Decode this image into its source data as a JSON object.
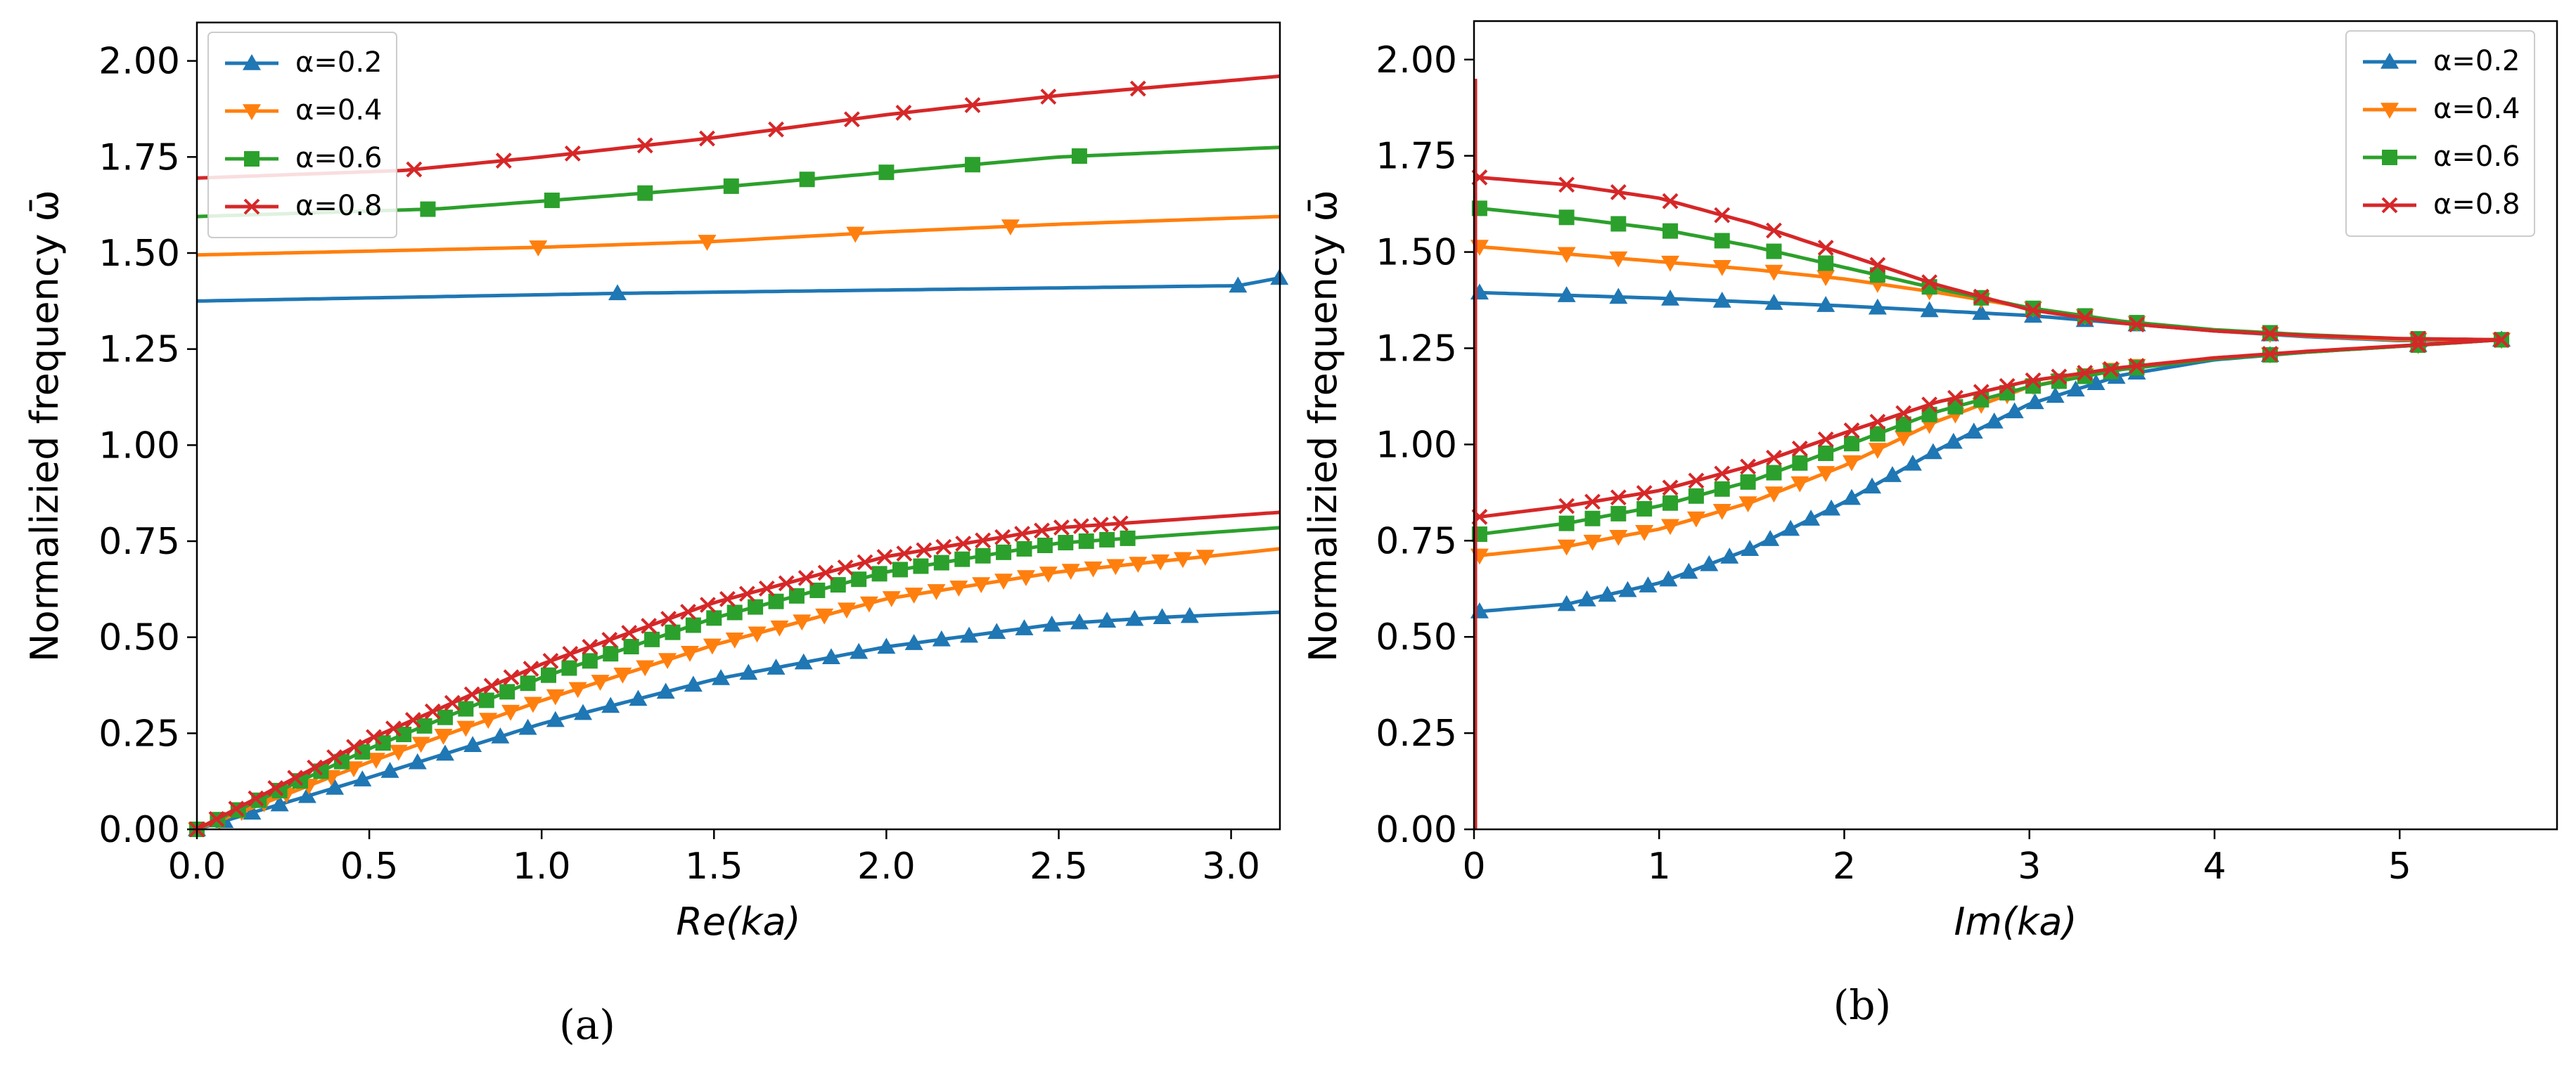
{
  "chart_data": [
    {
      "type": "line",
      "panel": "(a)",
      "xlabel": "Re(ka)",
      "ylabel": "Normalizied frequency ω̄",
      "xlim": [
        0,
        3.1416
      ],
      "ylim": [
        0,
        2.1
      ],
      "xticks": [
        "0.0",
        "0.5",
        "1.0",
        "1.5",
        "2.0",
        "2.5",
        "3.0"
      ],
      "yticks": [
        "0.00",
        "0.25",
        "0.50",
        "0.75",
        "1.00",
        "1.25",
        "1.50",
        "1.75",
        "2.00"
      ],
      "legend_position": "top-left",
      "series": [
        {
          "name": "α=0.2",
          "color": "#1f77b4",
          "marker": "triangle-up",
          "branches": [
            {
              "x": [
                0,
                1.22,
                3.02,
                3.14
              ],
              "y": [
                1.375,
                1.395,
                1.415,
                1.435
              ],
              "markers": [
                1.22,
                3.02,
                3.14
              ]
            },
            {
              "x": [
                0,
                0.5,
                1.0,
                1.5,
                2.0,
                2.5,
                2.8,
                3.14
              ],
              "y": [
                0,
                0.135,
                0.275,
                0.39,
                0.475,
                0.535,
                0.552,
                0.565
              ],
              "marker_step": 0.08,
              "marker_max": 2.9
            }
          ]
        },
        {
          "name": "α=0.4",
          "color": "#ff7f0e",
          "marker": "triangle-down",
          "branches": [
            {
              "x": [
                0,
                1.0,
                1.5,
                2.0,
                2.5,
                3.14
              ],
              "y": [
                1.495,
                1.515,
                1.53,
                1.555,
                1.575,
                1.595
              ],
              "markers": [
                0.99,
                1.48,
                1.91,
                2.36
              ]
            },
            {
              "x": [
                0,
                0.5,
                1.0,
                1.5,
                2.0,
                2.5,
                3.14
              ],
              "y": [
                0,
                0.175,
                0.335,
                0.48,
                0.6,
                0.67,
                0.73
              ],
              "marker_step": 0.065,
              "marker_max": 2.95
            }
          ]
        },
        {
          "name": "α=0.6",
          "color": "#2ca02c",
          "marker": "square",
          "branches": [
            {
              "x": [
                0,
                0.7,
                1.0,
                1.5,
                2.0,
                2.5,
                3.14
              ],
              "y": [
                1.595,
                1.615,
                1.635,
                1.67,
                1.71,
                1.75,
                1.775
              ],
              "markers": [
                0.67,
                1.03,
                1.3,
                1.55,
                1.77,
                2.0,
                2.25,
                2.56
              ]
            },
            {
              "x": [
                0,
                0.5,
                1.0,
                1.5,
                2.0,
                2.5,
                3.14
              ],
              "y": [
                0,
                0.21,
                0.395,
                0.55,
                0.67,
                0.745,
                0.785
              ],
              "marker_step": 0.06,
              "marker_max": 2.72
            }
          ]
        },
        {
          "name": "α=0.8",
          "color": "#d62728",
          "marker": "x",
          "branches": [
            {
              "x": [
                0,
                0.6,
                1.0,
                1.5,
                2.0,
                2.5,
                3.14
              ],
              "y": [
                1.695,
                1.715,
                1.75,
                1.8,
                1.86,
                1.91,
                1.96
              ],
              "markers": [
                0.63,
                0.89,
                1.09,
                1.3,
                1.48,
                1.68,
                1.9,
                2.05,
                2.25,
                2.47,
                2.73
              ]
            },
            {
              "x": [
                0,
                0.5,
                1.0,
                1.5,
                2.0,
                2.5,
                3.14
              ],
              "y": [
                0,
                0.235,
                0.43,
                0.59,
                0.71,
                0.785,
                0.825
              ],
              "marker_step": 0.057,
              "marker_max": 2.73
            }
          ]
        }
      ]
    },
    {
      "type": "line",
      "panel": "(b)",
      "xlabel": "Im(ka)",
      "ylabel": "Normalizied frequency ω̄",
      "xlim": [
        0,
        5.85
      ],
      "ylim": [
        0,
        2.1
      ],
      "xticks": [
        "0",
        "1",
        "2",
        "3",
        "4",
        "5"
      ],
      "yticks": [
        "0.00",
        "0.25",
        "0.50",
        "0.75",
        "1.00",
        "1.25",
        "1.50",
        "1.75",
        "2.00"
      ],
      "legend_position": "top-right",
      "series": [
        {
          "name": "α=0.2",
          "color": "#1f77b4",
          "marker": "triangle-up",
          "upper": {
            "x": [
              0,
              1.0,
              2.0,
              3.0,
              3.5,
              4.0,
              4.5,
              5.0,
              5.55
            ],
            "y": [
              1.395,
              1.38,
              1.36,
              1.335,
              1.315,
              1.295,
              1.28,
              1.27,
              1.272
            ]
          },
          "lower": {
            "x": [
              0,
              0.5,
              1.0,
              1.5,
              2.0,
              2.5,
              3.0,
              3.5,
              4.0,
              4.5,
              5.0,
              5.55
            ],
            "y": [
              0.565,
              0.585,
              0.64,
              0.73,
              0.85,
              0.985,
              1.105,
              1.18,
              1.22,
              1.24,
              1.255,
              1.272
            ]
          },
          "vertical_top": 1.395
        },
        {
          "name": "α=0.4",
          "color": "#ff7f0e",
          "marker": "triangle-down",
          "upper": {
            "x": [
              0,
              0.5,
              1.0,
              1.5,
              2.0,
              2.5,
              3.0,
              3.5,
              4.0,
              4.5,
              5.0,
              5.55
            ],
            "y": [
              1.515,
              1.495,
              1.475,
              1.455,
              1.43,
              1.395,
              1.355,
              1.32,
              1.295,
              1.282,
              1.272,
              1.272
            ]
          },
          "lower": {
            "x": [
              0,
              0.5,
              1.0,
              1.5,
              2.0,
              2.5,
              3.0,
              3.5,
              4.0,
              4.5,
              5.0,
              5.55
            ],
            "y": [
              0.71,
              0.735,
              0.78,
              0.85,
              0.945,
              1.06,
              1.15,
              1.2,
              1.225,
              1.24,
              1.255,
              1.272
            ]
          },
          "vertical_top": 1.52
        },
        {
          "name": "α=0.6",
          "color": "#2ca02c",
          "marker": "square",
          "upper": {
            "x": [
              0,
              0.5,
              1.0,
              1.5,
              2.0,
              2.5,
              3.0,
              3.5,
              4.0,
              4.5,
              5.0,
              5.55
            ],
            "y": [
              1.615,
              1.59,
              1.56,
              1.515,
              1.46,
              1.405,
              1.355,
              1.32,
              1.298,
              1.285,
              1.275,
              1.272
            ]
          },
          "lower": {
            "x": [
              0,
              0.5,
              1.0,
              1.5,
              2.0,
              2.5,
              3.0,
              3.5,
              4.0,
              4.5,
              5.0,
              5.55
            ],
            "y": [
              0.765,
              0.795,
              0.84,
              0.905,
              0.995,
              1.085,
              1.15,
              1.195,
              1.222,
              1.24,
              1.255,
              1.272
            ]
          },
          "vertical_top": 1.66
        },
        {
          "name": "α=0.8",
          "color": "#d62728",
          "marker": "x",
          "upper": {
            "x": [
              0,
              0.5,
              1.0,
              1.5,
              2.0,
              2.5,
              3.0,
              3.5,
              4.0,
              4.5,
              5.0,
              5.55
            ],
            "y": [
              1.695,
              1.675,
              1.64,
              1.575,
              1.495,
              1.415,
              1.35,
              1.315,
              1.295,
              1.283,
              1.275,
              1.272
            ]
          },
          "lower": {
            "x": [
              0,
              0.5,
              1.0,
              1.5,
              2.0,
              2.5,
              3.0,
              3.5,
              4.0,
              4.5,
              5.0,
              5.55
            ],
            "y": [
              0.81,
              0.84,
              0.88,
              0.945,
              1.03,
              1.11,
              1.165,
              1.2,
              1.225,
              1.242,
              1.256,
              1.272
            ]
          },
          "vertical_top": 1.95
        }
      ]
    }
  ],
  "captions": {
    "a": "(a)",
    "b": "(b)"
  }
}
